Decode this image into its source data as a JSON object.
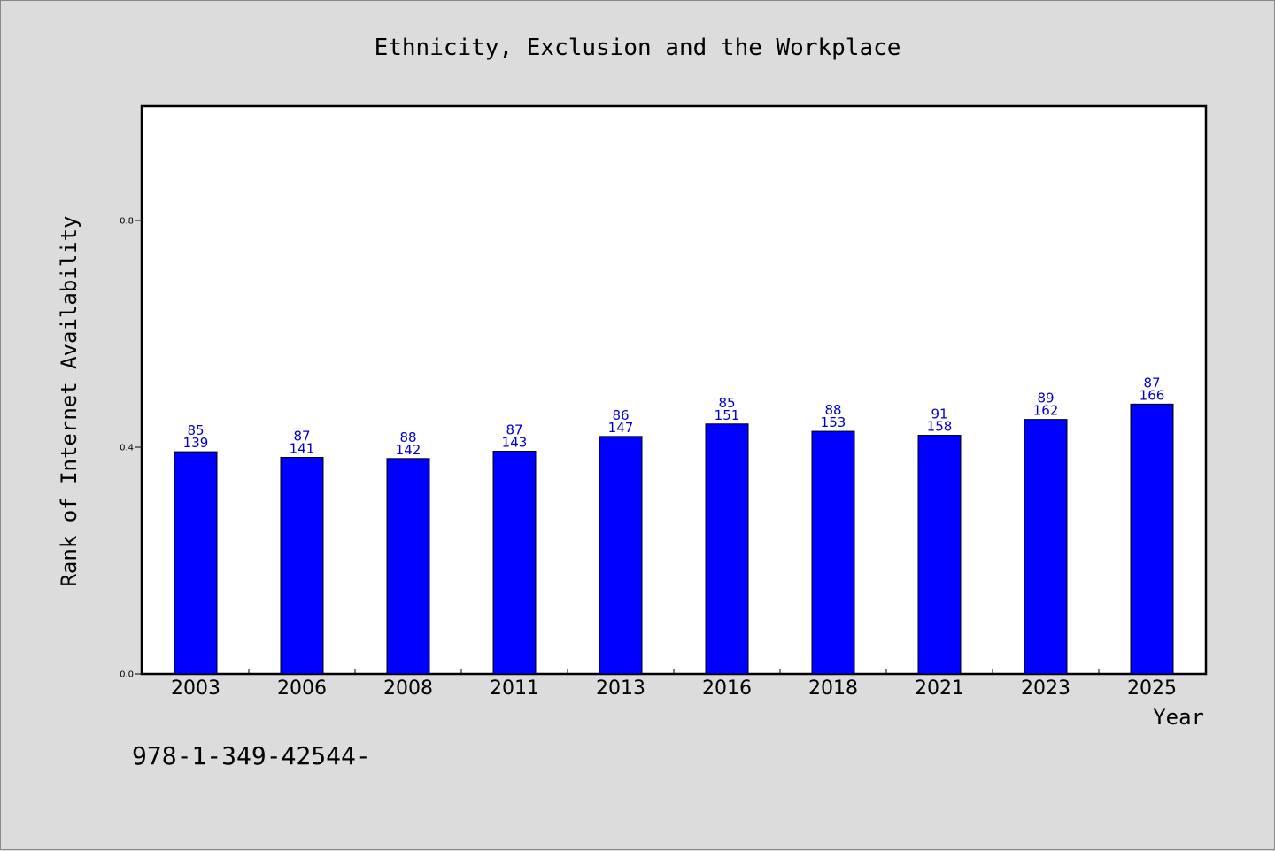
{
  "chart_data": {
    "type": "bar",
    "title": "Ethnicity, Exclusion and the Workplace",
    "xlabel": "Year",
    "ylabel": "Rank of Internet Availability",
    "ylim": [
      0,
      1.0
    ],
    "yticks": [
      "0.0",
      "0.4",
      "0.8"
    ],
    "categories": [
      "2003",
      "2006",
      "2008",
      "2011",
      "2013",
      "2016",
      "2018",
      "2021",
      "2023",
      "2025"
    ],
    "values": [
      0.392,
      0.382,
      0.38,
      0.393,
      0.419,
      0.441,
      0.428,
      0.421,
      0.449,
      0.476
    ],
    "labels_top": [
      "85",
      "87",
      "88",
      "87",
      "86",
      "85",
      "88",
      "91",
      "89",
      "87"
    ],
    "labels_bottom": [
      "139",
      "141",
      "142",
      "143",
      "147",
      "151",
      "153",
      "158",
      "162",
      "166"
    ],
    "bar_color": "#0000ff",
    "label_color": "#0000cc",
    "grid": false,
    "legend": "none"
  },
  "footer_text": "978-1-349-42544-"
}
